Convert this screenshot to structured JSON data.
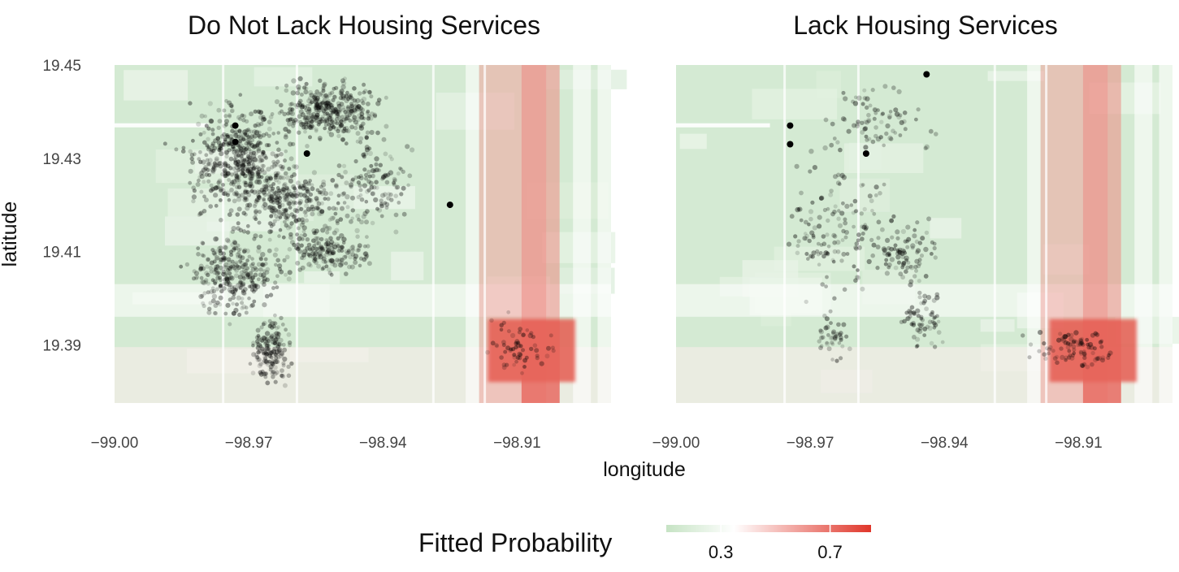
{
  "chart_data": {
    "type": "scatter",
    "layout": "two facet panels over a shaded probability surface",
    "x_axis": {
      "label": "longitude",
      "ticks": [
        -99.0,
        -98.97,
        -98.94,
        -98.91
      ],
      "tick_labels": [
        "−99.00",
        "−98.97",
        "−98.94",
        "−98.91"
      ],
      "xlim": [
        -99.0,
        -98.889
      ]
    },
    "y_axis": {
      "label": "latitude",
      "ticks": [
        19.39,
        19.41,
        19.43,
        19.45
      ],
      "tick_labels": [
        "19.39",
        "19.41",
        "19.43",
        "19.45"
      ],
      "ylim": [
        19.3775,
        19.45
      ]
    },
    "panels": [
      {
        "title": "Do Not Lack Housing Services",
        "point_count_approx": 2000,
        "highlighted_points": [
          {
            "x": -98.973,
            "y": 19.437
          },
          {
            "x": -98.973,
            "y": 19.4335
          },
          {
            "x": -98.957,
            "y": 19.431
          },
          {
            "x": -98.925,
            "y": 19.42
          }
        ]
      },
      {
        "title": "Lack Housing Services",
        "point_count_approx": 500,
        "highlighted_points": [
          {
            "x": -98.9745,
            "y": 19.437
          },
          {
            "x": -98.9745,
            "y": 19.433
          },
          {
            "x": -98.9575,
            "y": 19.431
          },
          {
            "x": -98.944,
            "y": 19.448
          }
        ]
      }
    ],
    "surface": {
      "description": "fitted probability field, green low / white mid / red high",
      "hotspot": {
        "x": [
          -98.9165,
          -98.897
        ],
        "y": [
          19.382,
          19.3955
        ],
        "value": 0.75
      },
      "warm_columns": [
        {
          "x": [
            -98.9185,
            -98.9035
          ],
          "value": 0.55
        },
        {
          "x": [
            -98.909,
            -98.9005
          ],
          "value": 0.62
        }
      ],
      "cool_rows": [
        {
          "y": [
            19.3775,
            19.3895
          ],
          "value": 0.35
        },
        {
          "y": [
            19.396,
            19.403
          ],
          "value": 0.3
        }
      ],
      "base_value": 0.15
    },
    "legend": {
      "title": "Fitted Probability",
      "placement": "bottom",
      "ticks": [
        0.3,
        0.7
      ],
      "range": [
        0.1,
        0.85
      ],
      "colors": {
        "low": "#c6e3c4",
        "mid": "#ffffff",
        "high": "#e0362a"
      }
    },
    "grid": false
  }
}
